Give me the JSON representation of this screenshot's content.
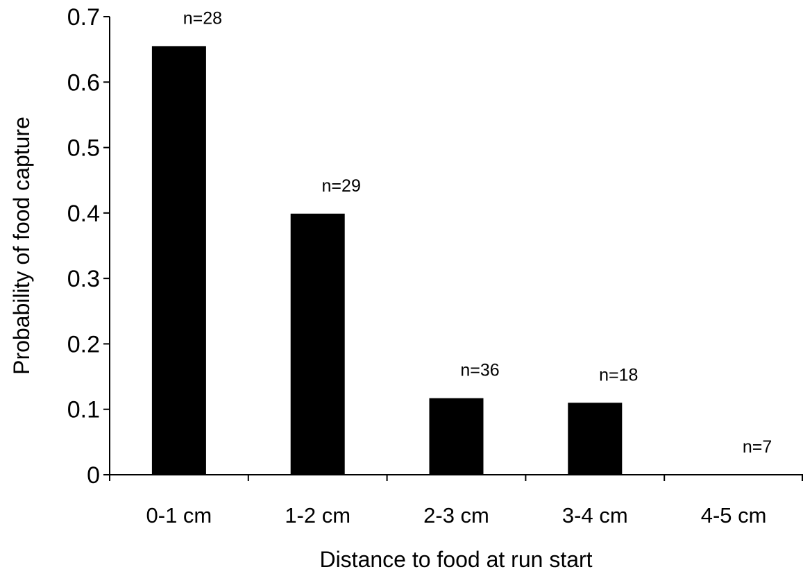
{
  "chart_data": {
    "type": "bar",
    "title": "",
    "xlabel": "Distance to food at run start",
    "ylabel": "Probability of food capture",
    "categories": [
      "0-1 cm",
      "1-2 cm",
      "2-3 cm",
      "3-4 cm",
      "4-5 cm"
    ],
    "values": [
      0.655,
      0.399,
      0.117,
      0.11,
      0
    ],
    "bar_labels": [
      "n=28",
      "n=29",
      "n=36",
      "n=18",
      "n=7"
    ],
    "ylim": [
      0,
      0.7
    ],
    "yticks": [
      "0",
      "0.1",
      "0.2",
      "0.3",
      "0.4",
      "0.5",
      "0.6",
      "0.7"
    ],
    "grid": false,
    "legend": "none",
    "bar_color": "#000000"
  }
}
